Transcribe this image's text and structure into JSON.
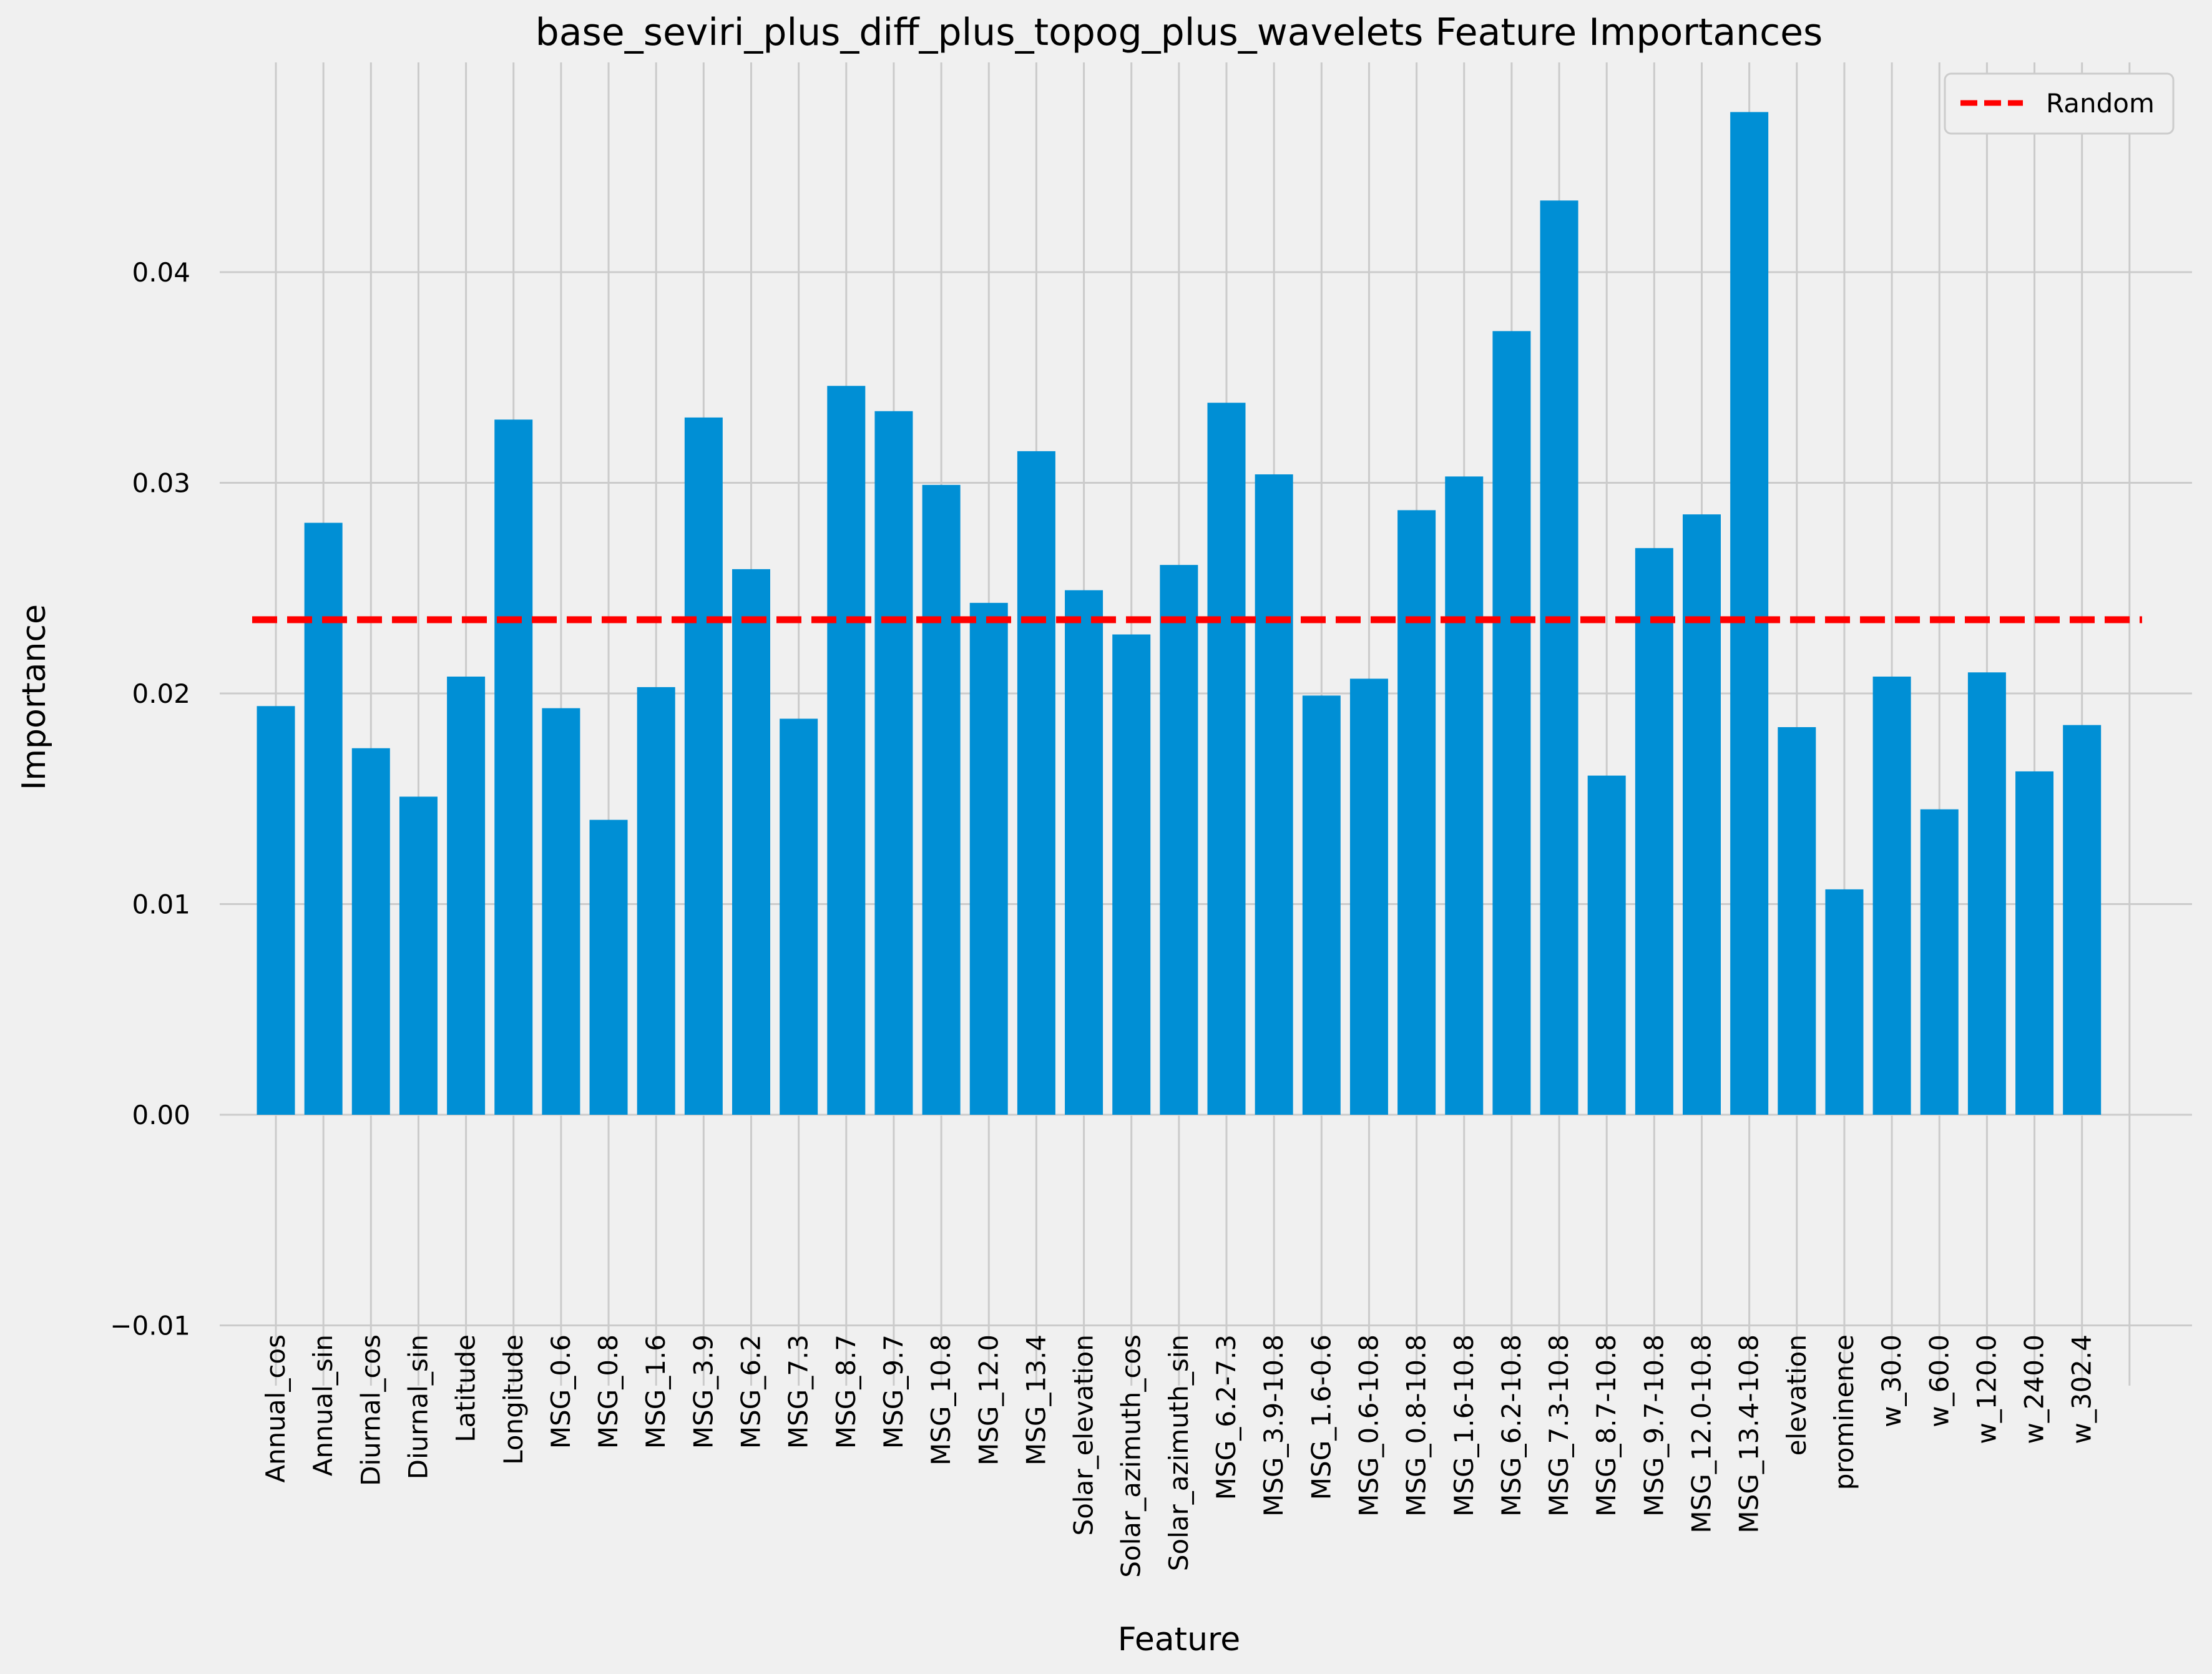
{
  "chart_data": {
    "type": "bar",
    "title": "base_seviri_plus_diff_plus_topog_plus_wavelets Feature Importances",
    "xlabel": "Feature",
    "ylabel": "Importance",
    "ylim": [
      -0.01,
      0.05
    ],
    "yticks": [
      -0.01,
      0.0,
      0.01,
      0.02,
      0.03,
      0.04
    ],
    "ytick_labels": [
      "−0.01",
      "0.00",
      "0.01",
      "0.02",
      "0.03",
      "0.04"
    ],
    "grid": true,
    "categories": [
      "Annual_cos",
      "Annual_sin",
      "Diurnal_cos",
      "Diurnal_sin",
      "Latitude",
      "Longitude",
      "MSG_0.6",
      "MSG_0.8",
      "MSG_1.6",
      "MSG_3.9",
      "MSG_6.2",
      "MSG_7.3",
      "MSG_8.7",
      "MSG_9.7",
      "MSG_10.8",
      "MSG_12.0",
      "MSG_13.4",
      "Solar_elevation",
      "Solar_azimuth_cos",
      "Solar_azimuth_sin",
      "MSG_6.2-7.3",
      "MSG_3.9-10.8",
      "MSG_1.6-0.6",
      "MSG_0.6-10.8",
      "MSG_0.8-10.8",
      "MSG_1.6-10.8",
      "MSG_6.2-10.8",
      "MSG_7.3-10.8",
      "MSG_8.7-10.8",
      "MSG_9.7-10.8",
      "MSG_12.0-10.8",
      "MSG_13.4-10.8",
      "elevation",
      "prominence",
      "w_30.0",
      "w_60.0",
      "w_120.0",
      "w_240.0",
      "w_302.4"
    ],
    "values": [
      0.0194,
      0.0281,
      0.0174,
      0.0151,
      0.0208,
      0.033,
      0.0193,
      0.014,
      0.0203,
      0.0331,
      0.0259,
      0.0188,
      0.0346,
      0.0334,
      0.0299,
      0.0243,
      0.0315,
      0.0249,
      0.0228,
      0.0261,
      0.0338,
      0.0304,
      0.0199,
      0.0207,
      0.0287,
      0.0303,
      0.0372,
      0.0434,
      0.0161,
      0.0269,
      0.0285,
      0.0476,
      0.0184,
      0.0107,
      0.0208,
      0.0145,
      0.021,
      0.0163,
      0.0185
    ],
    "bar_color": "#008fd5",
    "reference_line": {
      "name": "Random",
      "value": 0.0235,
      "color": "#ff0000",
      "style": "dashed"
    },
    "legend_position": "top-right"
  }
}
